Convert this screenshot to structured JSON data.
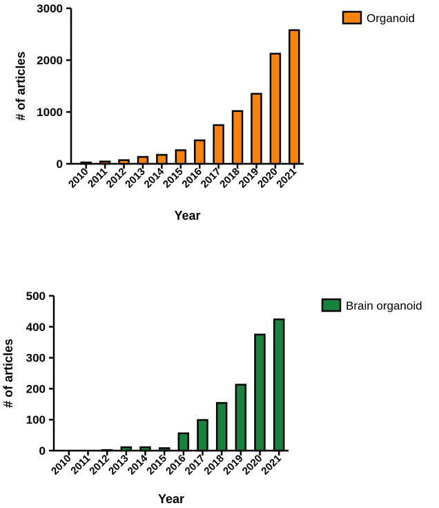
{
  "chart_data": [
    {
      "type": "bar",
      "title": "",
      "categories": [
        "2010",
        "2011",
        "2012",
        "2013",
        "2014",
        "2015",
        "2016",
        "2017",
        "2018",
        "2019",
        "2020",
        "2021"
      ],
      "series": [
        {
          "name": "Organoid",
          "values": [
            27,
            44,
            71,
            133,
            173,
            262,
            453,
            747,
            1018,
            1351,
            2124,
            2578
          ],
          "color": "#f98208"
        }
      ],
      "xlabel": "Year",
      "ylabel": "# of articles",
      "ylim": [
        0,
        3000
      ],
      "yticks": [
        "0",
        "1000",
        "2000",
        "3000"
      ],
      "grid": false,
      "legend": "top-right"
    },
    {
      "type": "bar",
      "title": "",
      "categories": [
        "2010",
        "2011",
        "2012",
        "2013",
        "2014",
        "2015",
        "2016",
        "2017",
        "2018",
        "2019",
        "2020",
        "2021"
      ],
      "series": [
        {
          "name": "Brain organoid",
          "values": [
            0,
            0,
            2,
            11,
            11,
            8,
            56,
            99,
            154,
            213,
            375,
            424
          ],
          "color": "#17823e"
        }
      ],
      "xlabel": "Year",
      "ylabel": "# of articles",
      "ylim": [
        0,
        500
      ],
      "yticks": [
        "0",
        "100",
        "200",
        "300",
        "400",
        "500"
      ],
      "grid": false,
      "legend": "top-right"
    }
  ]
}
